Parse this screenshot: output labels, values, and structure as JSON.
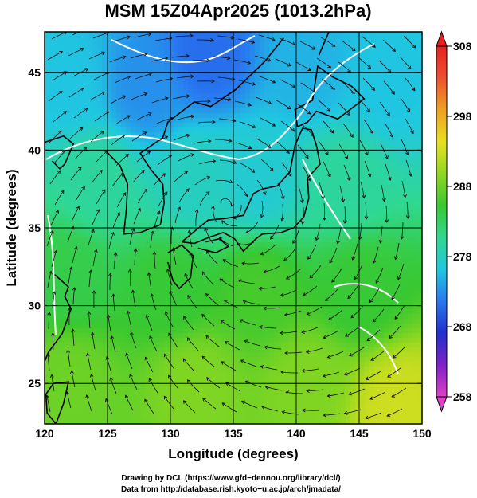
{
  "chart_data": {
    "type": "heatmap",
    "title": "MSM 15Z04Apr2025 (1013.2hPa)",
    "xlabel": "Longitude (degrees)",
    "ylabel": "Latitude  (degrees)",
    "xlim": [
      120,
      150
    ],
    "ylim": [
      22.4,
      47.6
    ],
    "x_ticks": [
      120,
      125,
      130,
      135,
      140,
      145,
      150
    ],
    "x_tick_labels": [
      "120",
      "125",
      "130",
      "135",
      "140",
      "145",
      "150"
    ],
    "y_ticks": [
      25,
      30,
      35,
      40,
      45
    ],
    "y_tick_labels": [
      "25",
      "30",
      "35",
      "40",
      "45"
    ],
    "grid": true,
    "grid_step_deg": 5,
    "colorbar": {
      "min": 258,
      "max": 308,
      "ticks": [
        258,
        268,
        278,
        288,
        298,
        308
      ],
      "tick_labels": [
        "258",
        "268",
        "278",
        "288",
        "298",
        "308"
      ],
      "colors": [
        "#e040c8",
        "#8020c8",
        "#2030d0",
        "#2878f0",
        "#20c8e0",
        "#30d890",
        "#38c830",
        "#90d820",
        "#e8e020",
        "#f0a020",
        "#f05030",
        "#e82020"
      ]
    },
    "field_samples": [
      {
        "lon": 122,
        "lat": 44,
        "value": 276
      },
      {
        "lon": 128,
        "lat": 44,
        "value": 273
      },
      {
        "lon": 133,
        "lat": 46,
        "value": 271
      },
      {
        "lon": 141,
        "lat": 45,
        "value": 275
      },
      {
        "lon": 147,
        "lat": 44,
        "value": 276
      },
      {
        "lon": 124,
        "lat": 38,
        "value": 280
      },
      {
        "lon": 132,
        "lat": 38,
        "value": 278
      },
      {
        "lon": 137,
        "lat": 38,
        "value": 277
      },
      {
        "lon": 144,
        "lat": 38,
        "value": 280
      },
      {
        "lon": 122,
        "lat": 32,
        "value": 284
      },
      {
        "lon": 130,
        "lat": 31,
        "value": 285
      },
      {
        "lon": 137,
        "lat": 31,
        "value": 286
      },
      {
        "lon": 145,
        "lat": 31,
        "value": 285
      },
      {
        "lon": 122,
        "lat": 25,
        "value": 288
      },
      {
        "lon": 132,
        "lat": 25,
        "value": 289
      },
      {
        "lon": 141,
        "lat": 25,
        "value": 289
      },
      {
        "lon": 148,
        "lat": 23.5,
        "value": 293
      }
    ],
    "overlays": [
      "coastlines",
      "streamlines",
      "white contour lines"
    ]
  },
  "credits": {
    "line1": "Drawing by DCL (https://www.gfd−dennou.org/library/dcl/)",
    "line2": "Data from http://database.rish.kyoto−u.ac.jp/arch/jmadata/"
  }
}
